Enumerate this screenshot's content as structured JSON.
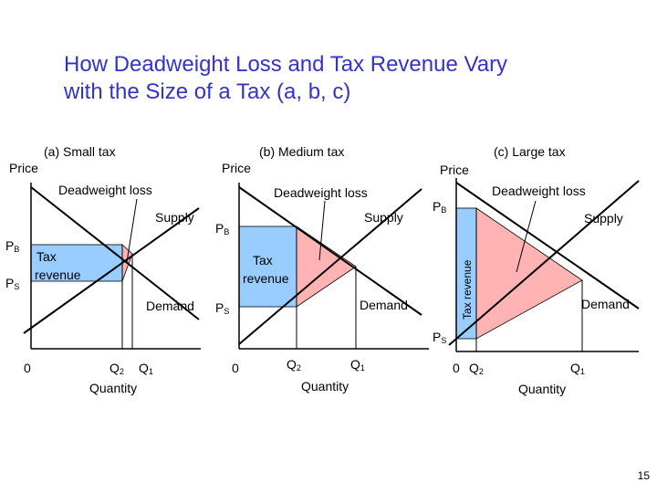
{
  "slide": {
    "title_line1": "How Deadweight Loss and Tax Revenue Vary",
    "title_line2": "with the Size of a Tax (a, b, c)",
    "page_number": "15"
  },
  "panels": {
    "a": {
      "heading": "(a) Small tax",
      "price_label": "Price",
      "deadweight_label": "Deadweight loss",
      "supply_label": "Supply",
      "demand_label": "Demand",
      "pb": "P",
      "pb_sub": "B",
      "ps": "P",
      "ps_sub": "S",
      "tax_line1": "Tax",
      "tax_line2": "revenue",
      "origin": "0",
      "q2": "Q",
      "q2_sub": "2",
      "q1": "Q",
      "q1_sub": "1",
      "quantity_label": "Quantity"
    },
    "b": {
      "heading": "(b) Medium tax",
      "price_label": "Price",
      "deadweight_label": "Deadweight loss",
      "supply_label": "Supply",
      "demand_label": "Demand",
      "pb": "P",
      "pb_sub": "B",
      "ps": "P",
      "ps_sub": "S",
      "tax_line1": "Tax",
      "tax_line2": "revenue",
      "origin": "0",
      "q2": "Q",
      "q2_sub": "2",
      "q1": "Q",
      "q1_sub": "1",
      "quantity_label": "Quantity"
    },
    "c": {
      "heading": "(c) Large tax",
      "price_label": "Price",
      "deadweight_label": "Deadweight loss",
      "supply_label": "Supply",
      "demand_label": "Demand",
      "pb": "P",
      "pb_sub": "B",
      "ps": "P",
      "ps_sub": "S",
      "tax_revenue_label": "Tax revenue",
      "origin": "0",
      "q2": "Q",
      "q2_sub": "2",
      "q1": "Q",
      "q1_sub": "1",
      "quantity_label": "Quantity"
    }
  },
  "colors": {
    "title": "#3333cc",
    "tax_revenue_fill": "#99ccff",
    "deadweight_fill": "#ffb3b3",
    "line": "#000000"
  }
}
